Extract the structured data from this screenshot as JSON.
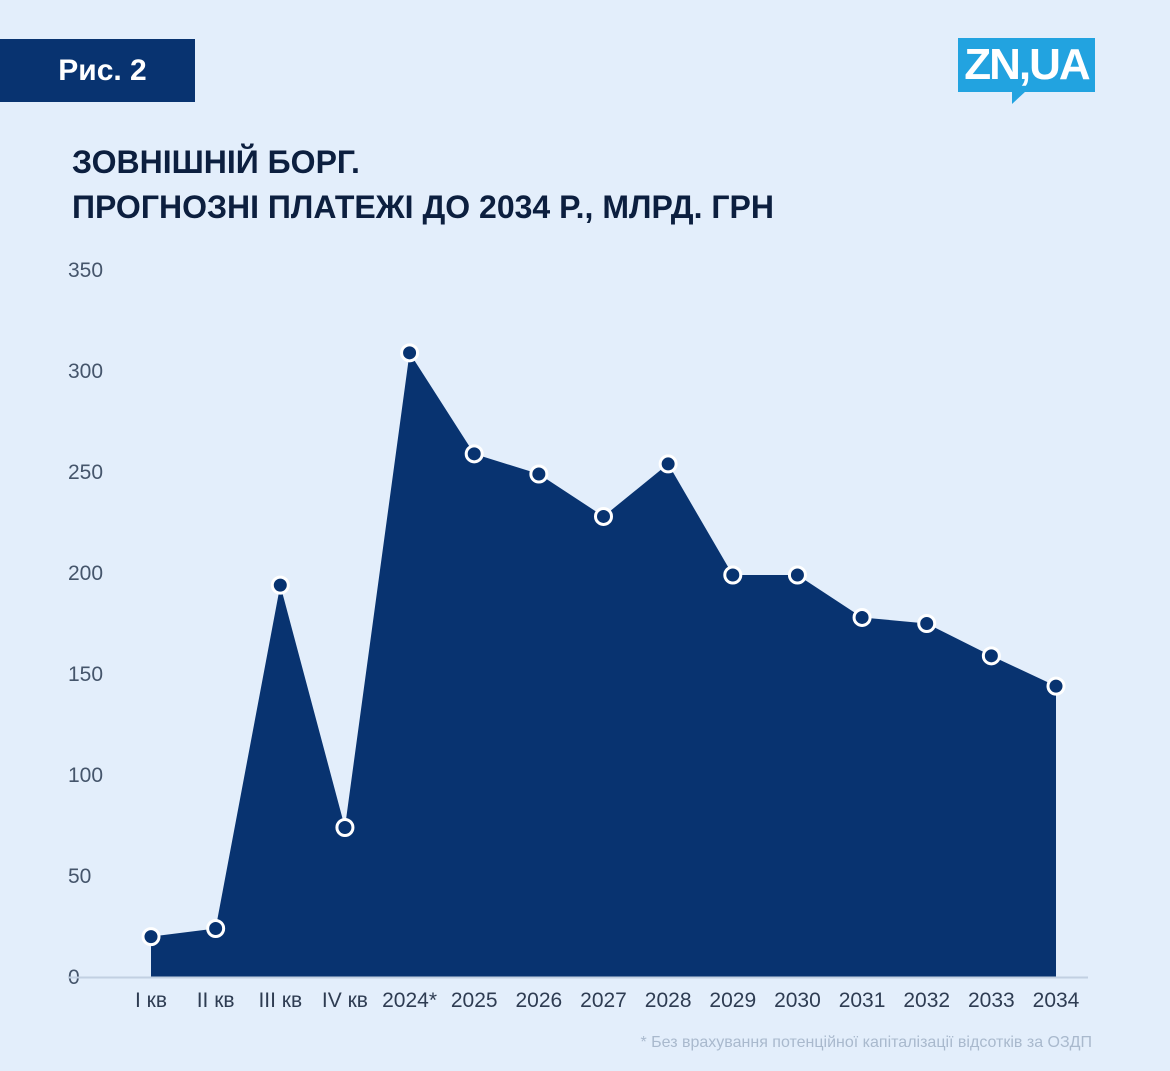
{
  "badge": {
    "label": "Рис. 2"
  },
  "logo": {
    "text": "ZN,UA"
  },
  "title": {
    "line1": "ЗОВНІШНІЙ БОРГ.",
    "line2": "ПРОГНОЗНІ ПЛАТЕЖІ ДО 2034 Р., МЛРД. ГРН"
  },
  "footnote": "* Без врахування потенційної капіталізації відсотків за ОЗДП",
  "colors": {
    "area_fill": "#083370",
    "marker_fill": "#083370",
    "marker_stroke": "#ffffff",
    "axis": "#c2d0e2",
    "accent": "#22a3e0"
  },
  "chart_data": {
    "type": "area",
    "title": "ЗОВНІШНІЙ БОРГ. ПРОГНОЗНІ ПЛАТЕЖІ ДО 2034 Р., МЛРД. ГРН",
    "xlabel": "",
    "ylabel": "",
    "ylim": [
      0,
      350
    ],
    "yticks": [
      0,
      50,
      100,
      150,
      200,
      250,
      300,
      350
    ],
    "grid": false,
    "categories": [
      "I кв",
      "II кв",
      "III кв",
      "IV кв",
      "2024*",
      "2025",
      "2026",
      "2027",
      "2028",
      "2029",
      "2030",
      "2031",
      "2032",
      "2033",
      "2034"
    ],
    "values": [
      20,
      24,
      194,
      74,
      309,
      259,
      249,
      228,
      254,
      199,
      199,
      178,
      175,
      159,
      144
    ]
  }
}
